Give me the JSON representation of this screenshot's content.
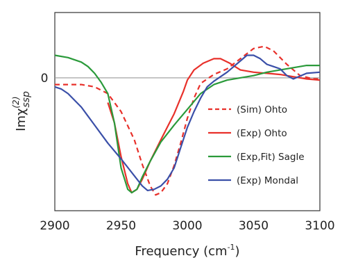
{
  "chart_data": {
    "type": "line",
    "xlabel": "Frequency (cm",
    "xlabel_sup": "-1",
    "xlabel_end": ")",
    "ylabel_main": "Imχ",
    "ylabel_sup": "(2)",
    "ylabel_sub": "ssp",
    "xlim": [
      2900,
      3100
    ],
    "ylim": [
      -1.18,
      0.58
    ],
    "x_ticks": [
      2900,
      2950,
      3000,
      3050,
      3100
    ],
    "y_ticks": [
      {
        "value": 0,
        "label": "0"
      }
    ],
    "zero_line": true,
    "grid": false,
    "legend_position": "right",
    "series": [
      {
        "name": "(Sim) Ohto",
        "color": "#e8302a",
        "dash": "dashed",
        "points": [
          [
            2900,
            -0.06
          ],
          [
            2910,
            -0.06
          ],
          [
            2920,
            -0.06
          ],
          [
            2930,
            -0.08
          ],
          [
            2940,
            -0.14
          ],
          [
            2950,
            -0.3
          ],
          [
            2960,
            -0.55
          ],
          [
            2966,
            -0.77
          ],
          [
            2972,
            -0.96
          ],
          [
            2976,
            -1.04
          ],
          [
            2980,
            -1.02
          ],
          [
            2985,
            -0.94
          ],
          [
            2990,
            -0.78
          ],
          [
            2995,
            -0.58
          ],
          [
            3000,
            -0.36
          ],
          [
            3005,
            -0.18
          ],
          [
            3010,
            -0.05
          ],
          [
            3020,
            0.03
          ],
          [
            3030,
            0.08
          ],
          [
            3040,
            0.17
          ],
          [
            3050,
            0.26
          ],
          [
            3058,
            0.28
          ],
          [
            3065,
            0.24
          ],
          [
            3075,
            0.12
          ],
          [
            3085,
            0.02
          ],
          [
            3095,
            -0.01
          ],
          [
            3100,
            -0.01
          ]
        ]
      },
      {
        "name": "(Exp) Ohto",
        "color": "#e8302a",
        "dash": "solid",
        "points": [
          [
            2940,
            -0.22
          ],
          [
            2945,
            -0.4
          ],
          [
            2950,
            -0.7
          ],
          [
            2955,
            -0.94
          ],
          [
            2958,
            -1.02
          ],
          [
            2962,
            -0.99
          ],
          [
            2966,
            -0.9
          ],
          [
            2972,
            -0.74
          ],
          [
            2980,
            -0.55
          ],
          [
            2990,
            -0.32
          ],
          [
            2997,
            -0.12
          ],
          [
            3000,
            -0.02
          ],
          [
            3005,
            0.07
          ],
          [
            3012,
            0.13
          ],
          [
            3020,
            0.17
          ],
          [
            3025,
            0.17
          ],
          [
            3032,
            0.13
          ],
          [
            3040,
            0.07
          ],
          [
            3050,
            0.05
          ],
          [
            3060,
            0.04
          ],
          [
            3070,
            0.03
          ],
          [
            3080,
            0.01
          ],
          [
            3090,
            -0.01
          ],
          [
            3100,
            -0.02
          ]
        ]
      },
      {
        "name": "(Exp,Fit) Sagle",
        "color": "#2a9a3a",
        "dash": "solid",
        "points": [
          [
            2900,
            0.2
          ],
          [
            2910,
            0.18
          ],
          [
            2920,
            0.14
          ],
          [
            2925,
            0.1
          ],
          [
            2930,
            0.04
          ],
          [
            2935,
            -0.04
          ],
          [
            2940,
            -0.14
          ],
          [
            2945,
            -0.4
          ],
          [
            2950,
            -0.8
          ],
          [
            2955,
            -0.99
          ],
          [
            2958,
            -1.02
          ],
          [
            2962,
            -0.99
          ],
          [
            2966,
            -0.88
          ],
          [
            2972,
            -0.74
          ],
          [
            2980,
            -0.57
          ],
          [
            2990,
            -0.42
          ],
          [
            3000,
            -0.28
          ],
          [
            3010,
            -0.14
          ],
          [
            3020,
            -0.06
          ],
          [
            3030,
            -0.02
          ],
          [
            3040,
            0.0
          ],
          [
            3050,
            0.02
          ],
          [
            3060,
            0.05
          ],
          [
            3070,
            0.07
          ],
          [
            3080,
            0.09
          ],
          [
            3090,
            0.11
          ],
          [
            3100,
            0.11
          ]
        ]
      },
      {
        "name": "(Exp) Mondal",
        "color": "#3a4fa8",
        "dash": "solid",
        "points": [
          [
            2900,
            -0.08
          ],
          [
            2905,
            -0.1
          ],
          [
            2910,
            -0.14
          ],
          [
            2920,
            -0.26
          ],
          [
            2930,
            -0.42
          ],
          [
            2940,
            -0.58
          ],
          [
            2950,
            -0.72
          ],
          [
            2960,
            -0.87
          ],
          [
            2966,
            -0.96
          ],
          [
            2970,
            -1.0
          ],
          [
            2975,
            -0.99
          ],
          [
            2980,
            -0.96
          ],
          [
            2985,
            -0.9
          ],
          [
            2990,
            -0.8
          ],
          [
            2995,
            -0.62
          ],
          [
            3000,
            -0.44
          ],
          [
            3005,
            -0.3
          ],
          [
            3010,
            -0.18
          ],
          [
            3015,
            -0.08
          ],
          [
            3020,
            -0.03
          ],
          [
            3030,
            0.05
          ],
          [
            3040,
            0.15
          ],
          [
            3045,
            0.2
          ],
          [
            3050,
            0.2
          ],
          [
            3055,
            0.17
          ],
          [
            3060,
            0.12
          ],
          [
            3065,
            0.1
          ],
          [
            3070,
            0.08
          ],
          [
            3075,
            0.02
          ],
          [
            3080,
            -0.01
          ],
          [
            3090,
            0.04
          ],
          [
            3100,
            0.05
          ]
        ]
      }
    ]
  }
}
